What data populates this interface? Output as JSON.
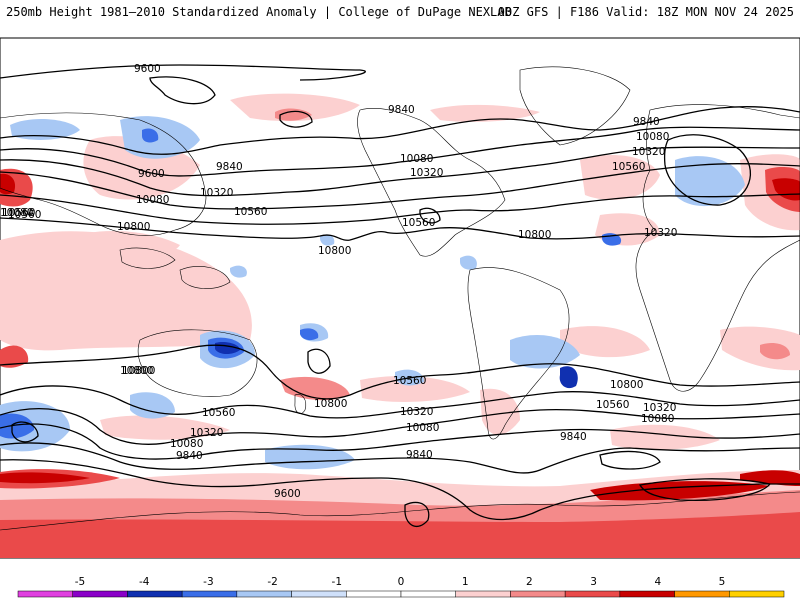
{
  "header": {
    "title": "250mb Height 1981–2010 Standardized Anomaly | College of DuPage NEXLAB",
    "run_info": "00Z GFS | F186 Valid: 18Z MON NOV 24 2025"
  },
  "colorbar": {
    "ticks": [
      "-5",
      "-4",
      "-3",
      "-2",
      "-1",
      "0",
      "1",
      "2",
      "3",
      "4",
      "5"
    ],
    "colors": [
      "#e040e0",
      "#8a00c8",
      "#1030b0",
      "#3a6ee8",
      "#a8c8f4",
      "#cfe0fa",
      "#ffffff",
      "#ffffff",
      "#fcd0d0",
      "#f48a8a",
      "#ea4a4a",
      "#c80000",
      "#ff9800",
      "#ffd000"
    ]
  },
  "contour_labels": [
    {
      "text": "9600"
    },
    {
      "text": "9840"
    },
    {
      "text": "9840"
    },
    {
      "text": "10080"
    },
    {
      "text": "10320"
    },
    {
      "text": "10560"
    },
    {
      "text": "9600"
    },
    {
      "text": "10080"
    },
    {
      "text": "10320"
    },
    {
      "text": "10560"
    },
    {
      "text": "10800"
    },
    {
      "text": "10800"
    },
    {
      "text": "10080"
    },
    {
      "text": "10320"
    },
    {
      "text": "10560"
    },
    {
      "text": "10800"
    },
    {
      "text": "9840"
    },
    {
      "text": "10080"
    },
    {
      "text": "10320"
    },
    {
      "text": "10560"
    },
    {
      "text": "10800"
    },
    {
      "text": "10560"
    },
    {
      "text": "10800"
    },
    {
      "text": "10800"
    },
    {
      "text": "10560"
    },
    {
      "text": "10320"
    },
    {
      "text": "10080"
    },
    {
      "text": "10560"
    },
    {
      "text": "10320"
    },
    {
      "text": "10080"
    },
    {
      "text": "9840"
    },
    {
      "text": "9600"
    },
    {
      "text": "10800"
    },
    {
      "text": "10560"
    },
    {
      "text": "10320"
    },
    {
      "text": "10080"
    },
    {
      "text": "9840"
    },
    {
      "text": "9840"
    }
  ]
}
